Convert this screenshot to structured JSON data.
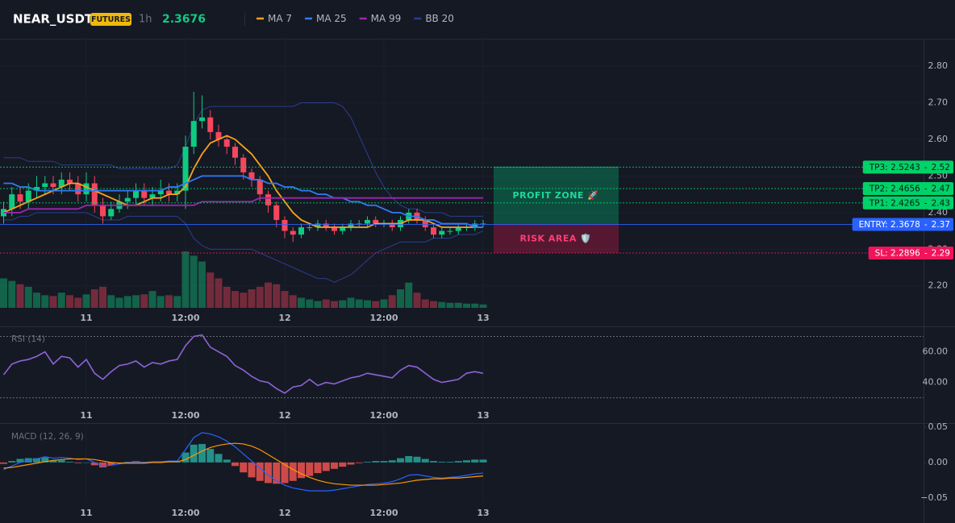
{
  "header": {
    "symbol": "NEAR_USDT",
    "badge": "FUTURES",
    "interval": "1h",
    "price": 2.3676
  },
  "chart_data": [
    {
      "type": "candlestick",
      "categories": [
        null,
        null,
        null,
        null,
        null,
        null,
        null,
        null,
        null,
        null,
        "11",
        null,
        null,
        null,
        null,
        null,
        null,
        null,
        null,
        null,
        null,
        null,
        "12:00",
        null,
        null,
        null,
        null,
        null,
        null,
        null,
        null,
        null,
        null,
        null,
        "12",
        null,
        null,
        null,
        null,
        null,
        null,
        null,
        null,
        null,
        null,
        null,
        "12:00",
        null,
        null,
        null,
        null,
        null,
        null,
        null,
        null,
        null,
        null,
        null,
        "13"
      ],
      "open": [
        2.39,
        2.41,
        2.45,
        2.43,
        2.46,
        2.47,
        2.48,
        2.47,
        2.49,
        2.48,
        2.45,
        2.48,
        2.42,
        2.39,
        2.41,
        2.43,
        2.44,
        2.46,
        2.44,
        2.45,
        2.46,
        2.45,
        2.46,
        2.58,
        2.65,
        2.66,
        2.62,
        2.6,
        2.58,
        2.55,
        2.51,
        2.49,
        2.45,
        2.42,
        2.38,
        2.35,
        2.34,
        2.36,
        2.36,
        2.37,
        2.36,
        2.35,
        2.36,
        2.37,
        2.37,
        2.38,
        2.37,
        2.37,
        2.36,
        2.38,
        2.4,
        2.38,
        2.36,
        2.34,
        2.35,
        2.35,
        2.36,
        2.36,
        2.37
      ],
      "high": [
        2.43,
        2.47,
        2.47,
        2.48,
        2.5,
        2.5,
        2.5,
        2.51,
        2.51,
        2.5,
        2.51,
        2.5,
        2.44,
        2.43,
        2.45,
        2.46,
        2.48,
        2.48,
        2.47,
        2.49,
        2.48,
        2.48,
        2.61,
        2.73,
        2.72,
        2.68,
        2.64,
        2.61,
        2.59,
        2.56,
        2.52,
        2.5,
        2.46,
        2.43,
        2.39,
        2.36,
        2.37,
        2.37,
        2.38,
        2.38,
        2.37,
        2.37,
        2.38,
        2.38,
        2.39,
        2.39,
        2.38,
        2.38,
        2.39,
        2.41,
        2.41,
        2.39,
        2.37,
        2.36,
        2.36,
        2.37,
        2.37,
        2.38,
        2.38
      ],
      "low": [
        2.37,
        2.39,
        2.41,
        2.41,
        2.44,
        2.45,
        2.45,
        2.45,
        2.46,
        2.43,
        2.43,
        2.4,
        2.37,
        2.38,
        2.4,
        2.41,
        2.42,
        2.42,
        2.42,
        2.43,
        2.43,
        2.43,
        2.41,
        2.56,
        2.63,
        2.6,
        2.58,
        2.56,
        2.53,
        2.49,
        2.47,
        2.43,
        2.4,
        2.36,
        2.33,
        2.32,
        2.33,
        2.35,
        2.35,
        2.35,
        2.34,
        2.34,
        2.35,
        2.36,
        2.36,
        2.36,
        2.36,
        2.35,
        2.35,
        2.37,
        2.37,
        2.35,
        2.33,
        2.33,
        2.34,
        2.34,
        2.35,
        2.35,
        2.36
      ],
      "close": [
        2.41,
        2.45,
        2.43,
        2.46,
        2.47,
        2.48,
        2.47,
        2.49,
        2.48,
        2.45,
        2.48,
        2.42,
        2.39,
        2.41,
        2.43,
        2.44,
        2.46,
        2.44,
        2.45,
        2.46,
        2.45,
        2.46,
        2.58,
        2.65,
        2.66,
        2.62,
        2.6,
        2.58,
        2.55,
        2.51,
        2.49,
        2.45,
        2.42,
        2.38,
        2.35,
        2.34,
        2.36,
        2.36,
        2.37,
        2.36,
        2.35,
        2.36,
        2.37,
        2.37,
        2.38,
        2.37,
        2.37,
        2.36,
        2.38,
        2.4,
        2.38,
        2.36,
        2.34,
        2.35,
        2.35,
        2.36,
        2.36,
        2.37,
        2.37
      ],
      "volume": [
        35,
        32,
        28,
        25,
        18,
        15,
        14,
        18,
        15,
        12,
        16,
        22,
        25,
        15,
        12,
        14,
        15,
        16,
        20,
        14,
        15,
        14,
        67,
        62,
        55,
        42,
        35,
        25,
        20,
        18,
        22,
        25,
        30,
        28,
        20,
        15,
        12,
        10,
        8,
        10,
        8,
        9,
        12,
        10,
        9,
        8,
        10,
        15,
        22,
        30,
        18,
        10,
        8,
        7,
        6,
        6,
        5,
        5,
        4
      ],
      "up_color": "#0ecb81",
      "down_color": "#f6465d",
      "series": [
        {
          "name": "MA 7",
          "color": "#f7a21b",
          "values": [
            2.4,
            2.41,
            2.42,
            2.43,
            2.44,
            2.45,
            2.46,
            2.47,
            2.48,
            2.48,
            2.47,
            2.46,
            2.45,
            2.44,
            2.43,
            2.42,
            2.42,
            2.43,
            2.44,
            2.44,
            2.45,
            2.45,
            2.47,
            2.52,
            2.56,
            2.59,
            2.6,
            2.61,
            2.6,
            2.58,
            2.56,
            2.53,
            2.5,
            2.46,
            2.43,
            2.4,
            2.38,
            2.37,
            2.36,
            2.36,
            2.36,
            2.36,
            2.36,
            2.36,
            2.36,
            2.37,
            2.37,
            2.37,
            2.37,
            2.38,
            2.38,
            2.38,
            2.37,
            2.36,
            2.36,
            2.36,
            2.36,
            2.36,
            2.36
          ]
        },
        {
          "name": "MA 25",
          "color": "#2f7bf5",
          "values": [
            2.48,
            2.48,
            2.47,
            2.47,
            2.46,
            2.46,
            2.46,
            2.46,
            2.46,
            2.46,
            2.46,
            2.46,
            2.46,
            2.46,
            2.46,
            2.46,
            2.46,
            2.46,
            2.46,
            2.46,
            2.47,
            2.47,
            2.48,
            2.49,
            2.5,
            2.5,
            2.5,
            2.5,
            2.5,
            2.5,
            2.49,
            2.49,
            2.48,
            2.48,
            2.47,
            2.47,
            2.46,
            2.46,
            2.45,
            2.45,
            2.44,
            2.44,
            2.43,
            2.43,
            2.42,
            2.42,
            2.41,
            2.4,
            2.4,
            2.39,
            2.39,
            2.38,
            2.38,
            2.37,
            2.37,
            2.37,
            2.37,
            2.36,
            2.36
          ]
        },
        {
          "name": "MA 99",
          "color": "#9c27b0",
          "values": [
            2.4,
            2.4,
            2.4,
            2.41,
            2.41,
            2.41,
            2.41,
            2.41,
            2.41,
            2.41,
            2.42,
            2.42,
            2.42,
            2.42,
            2.42,
            2.42,
            2.42,
            2.42,
            2.42,
            2.42,
            2.42,
            2.42,
            2.42,
            2.42,
            2.43,
            2.43,
            2.43,
            2.43,
            2.43,
            2.43,
            2.43,
            2.44,
            2.44,
            2.44,
            2.44,
            2.44,
            2.44,
            2.44,
            2.44,
            2.44,
            2.44,
            2.44,
            2.44,
            2.44,
            2.44,
            2.44,
            2.44,
            2.44,
            2.44,
            2.44,
            2.44,
            2.44,
            2.44,
            2.44,
            2.44,
            2.44,
            2.44,
            2.44,
            2.44
          ]
        },
        {
          "name": "BB 20",
          "color": "#2a3f8f",
          "upper": [
            2.55,
            2.55,
            2.55,
            2.54,
            2.54,
            2.54,
            2.54,
            2.53,
            2.53,
            2.53,
            2.53,
            2.53,
            2.53,
            2.53,
            2.52,
            2.52,
            2.52,
            2.52,
            2.52,
            2.52,
            2.52,
            2.53,
            2.58,
            2.64,
            2.68,
            2.69,
            2.69,
            2.69,
            2.69,
            2.69,
            2.69,
            2.69,
            2.69,
            2.69,
            2.69,
            2.69,
            2.7,
            2.7,
            2.7,
            2.7,
            2.7,
            2.69,
            2.66,
            2.61,
            2.56,
            2.51,
            2.47,
            2.44,
            2.42,
            2.41,
            2.41,
            2.4,
            2.4,
            2.4,
            2.39,
            2.39,
            2.39,
            2.39,
            2.39
          ],
          "lower": [
            2.38,
            2.38,
            2.39,
            2.39,
            2.4,
            2.4,
            2.4,
            2.4,
            2.4,
            2.4,
            2.4,
            2.39,
            2.38,
            2.38,
            2.38,
            2.39,
            2.39,
            2.39,
            2.39,
            2.39,
            2.39,
            2.39,
            2.37,
            2.33,
            2.31,
            2.3,
            2.3,
            2.3,
            2.3,
            2.3,
            2.3,
            2.29,
            2.28,
            2.27,
            2.26,
            2.25,
            2.24,
            2.23,
            2.22,
            2.22,
            2.21,
            2.22,
            2.23,
            2.25,
            2.27,
            2.29,
            2.3,
            2.31,
            2.32,
            2.32,
            2.32,
            2.32,
            2.33,
            2.33,
            2.33,
            2.34,
            2.34,
            2.34,
            2.35
          ]
        }
      ],
      "ylim": [
        2.14,
        2.875
      ],
      "yticks": [
        {
          "value": 2.2,
          "label": "2.20"
        },
        {
          "value": 2.3,
          "label": "2.30"
        },
        {
          "value": 2.4,
          "label": "2.40"
        },
        {
          "value": 2.5,
          "label": "2.50"
        },
        {
          "value": 2.6,
          "label": "2.60"
        },
        {
          "value": 2.7,
          "label": "2.70"
        },
        {
          "value": 2.8,
          "label": "2.80"
        }
      ],
      "grid": true,
      "level_separator": "-",
      "levels": [
        {
          "value": 2.5243,
          "label": "TP3: 2.5243",
          "price_label": "2.52",
          "color": "#00d26a",
          "text_color": "#0b1a12",
          "style": "dotted"
        },
        {
          "value": 2.4656,
          "label": "TP2: 2.4656",
          "price_label": "2.47",
          "color": "#00d26a",
          "text_color": "#0b1a12",
          "style": "dotted"
        },
        {
          "value": 2.4265,
          "label": "TP1: 2.4265",
          "price_label": "2.43",
          "color": "#00d26a",
          "text_color": "#0b1a12",
          "style": "dotted"
        },
        {
          "value": 2.3678,
          "label": "ENTRY: 2.3678",
          "price_label": "2.37",
          "color": "#2962ff",
          "text_color": "#ffffff",
          "style": "solid"
        },
        {
          "value": 2.2896,
          "label": "SL: 2.2896",
          "price_label": "2.29",
          "color": "#f0155a",
          "text_color": "#ffffff",
          "style": "dotted"
        }
      ],
      "zones": [
        {
          "label": "PROFIT ZONE 🚀",
          "from": 3,
          "to": 0,
          "color": "#00c27a",
          "text_color": "#1ed99a"
        },
        {
          "label": "RISK AREA 🛡️",
          "from": 4,
          "to": 3,
          "color": "#e0184f",
          "text_color": "#ff3d7a"
        }
      ]
    },
    {
      "type": "line",
      "title": "RSI (14)",
      "color": "#8e63d6",
      "values": [
        45,
        52,
        54,
        55,
        57,
        60,
        52,
        57,
        56,
        50,
        55,
        46,
        42,
        47,
        51,
        52,
        54,
        50,
        53,
        52,
        54,
        55,
        64,
        70,
        71,
        63,
        60,
        57,
        51,
        48,
        44,
        41,
        40,
        36,
        33,
        37,
        38,
        42,
        38,
        40,
        39,
        41,
        43,
        44,
        46,
        45,
        44,
        43,
        48,
        51,
        50,
        46,
        42,
        40,
        41,
        42,
        46,
        47,
        46
      ],
      "ylim": [
        24,
        75
      ],
      "yticks": [
        {
          "value": 40,
          "label": "40.00"
        },
        {
          "value": 60,
          "label": "60.00"
        }
      ],
      "levels": [
        30,
        70
      ]
    },
    {
      "type": "macd",
      "title": "MACD (12, 26, 9)",
      "series": [
        {
          "color": "#2962ff",
          "values": [
            -0.01,
            -0.005,
            0.0,
            0.003,
            0.005,
            0.008,
            0.006,
            0.007,
            0.006,
            0.004,
            0.005,
            0.0,
            -0.005,
            -0.004,
            -0.002,
            0.0,
            0.001,
            0.0,
            0.001,
            0.001,
            0.002,
            0.002,
            0.018,
            0.035,
            0.042,
            0.04,
            0.036,
            0.03,
            0.022,
            0.012,
            0.002,
            -0.008,
            -0.018,
            -0.026,
            -0.032,
            -0.036,
            -0.038,
            -0.04,
            -0.04,
            -0.04,
            -0.039,
            -0.037,
            -0.035,
            -0.033,
            -0.031,
            -0.03,
            -0.029,
            -0.027,
            -0.023,
            -0.018,
            -0.017,
            -0.019,
            -0.021,
            -0.022,
            -0.021,
            -0.02,
            -0.018,
            -0.016,
            -0.015
          ]
        },
        {
          "color": "#ff9800",
          "values": [
            -0.008,
            -0.007,
            -0.005,
            -0.003,
            -0.001,
            0.001,
            0.003,
            0.004,
            0.005,
            0.005,
            0.005,
            0.004,
            0.002,
            0.0,
            -0.001,
            -0.001,
            -0.001,
            -0.001,
            0.0,
            0.0,
            0.001,
            0.001,
            0.004,
            0.01,
            0.016,
            0.021,
            0.024,
            0.026,
            0.027,
            0.026,
            0.023,
            0.018,
            0.011,
            0.004,
            -0.003,
            -0.01,
            -0.016,
            -0.021,
            -0.025,
            -0.028,
            -0.03,
            -0.031,
            -0.032,
            -0.032,
            -0.032,
            -0.032,
            -0.031,
            -0.03,
            -0.029,
            -0.027,
            -0.025,
            -0.024,
            -0.023,
            -0.023,
            -0.022,
            -0.022,
            -0.021,
            -0.02,
            -0.019
          ]
        }
      ],
      "histogram": [
        -0.002,
        0.002,
        0.005,
        0.006,
        0.006,
        0.007,
        0.003,
        0.003,
        0.001,
        -0.001,
        0.0,
        -0.004,
        -0.007,
        -0.004,
        -0.001,
        0.001,
        0.002,
        0.001,
        0.001,
        0.001,
        0.001,
        0.001,
        0.014,
        0.025,
        0.026,
        0.019,
        0.012,
        0.004,
        -0.005,
        -0.014,
        -0.021,
        -0.026,
        -0.029,
        -0.03,
        -0.029,
        -0.026,
        -0.022,
        -0.019,
        -0.015,
        -0.012,
        -0.009,
        -0.006,
        -0.003,
        -0.001,
        0.001,
        0.002,
        0.002,
        0.003,
        0.006,
        0.009,
        0.008,
        0.005,
        0.002,
        0.001,
        0.001,
        0.002,
        0.003,
        0.004,
        0.004
      ],
      "up_color": "#26a69a",
      "down_color": "#ef5350",
      "ylim": [
        -0.058,
        0.052
      ],
      "yticks": [
        {
          "value": -0.05,
          "label": "−0.05"
        },
        {
          "value": 0,
          "label": "0.00"
        },
        0.05
      ]
    }
  ]
}
